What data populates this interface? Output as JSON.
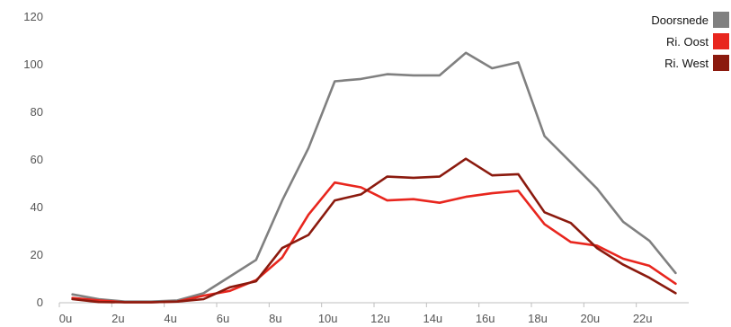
{
  "chart_data": {
    "type": "line",
    "title": "",
    "xlabel": "",
    "ylabel": "",
    "x": [
      0,
      1,
      2,
      3,
      4,
      5,
      6,
      7,
      8,
      9,
      10,
      11,
      12,
      13,
      14,
      15,
      16,
      17,
      18,
      19,
      20,
      21,
      22,
      23
    ],
    "xticks": [
      0,
      2,
      4,
      6,
      8,
      10,
      12,
      14,
      16,
      18,
      20,
      22
    ],
    "xtick_labels": [
      "0u",
      "2u",
      "4u",
      "6u",
      "8u",
      "10u",
      "12u",
      "14u",
      "16u",
      "18u",
      "20u",
      "22u"
    ],
    "ylim": [
      0,
      120
    ],
    "yticks": [
      0,
      20,
      40,
      60,
      80,
      100,
      120
    ],
    "ytick_labels": [
      "0",
      "20",
      "40",
      "60",
      "80",
      "100",
      "120"
    ],
    "grid": false,
    "legend_position": "top-right",
    "series": [
      {
        "name": "Doorsnede",
        "color": "#808080",
        "values": [
          3.5,
          1.5,
          0.5,
          0.5,
          1,
          4,
          11,
          18,
          43,
          65,
          93,
          94,
          96,
          95.5,
          95.5,
          105,
          98.5,
          101,
          70,
          59,
          48,
          34,
          26,
          12.5
        ]
      },
      {
        "name": "Ri. Oost",
        "color": "#e8261e",
        "values": [
          2,
          1,
          0.2,
          0.2,
          0.5,
          3,
          5,
          9.5,
          19,
          37,
          50.5,
          48.5,
          43,
          43.5,
          42,
          44.5,
          46,
          47,
          33,
          25.5,
          24,
          18.5,
          15.5,
          8
        ]
      },
      {
        "name": "Ri. West",
        "color": "#8b1a0e",
        "values": [
          1.5,
          0.3,
          0.2,
          0.2,
          0.5,
          1.5,
          6.5,
          9,
          23,
          28.5,
          43,
          45.5,
          53,
          52.5,
          53,
          60.5,
          53.5,
          54,
          38,
          33.5,
          23,
          16,
          10.5,
          4
        ]
      }
    ]
  }
}
